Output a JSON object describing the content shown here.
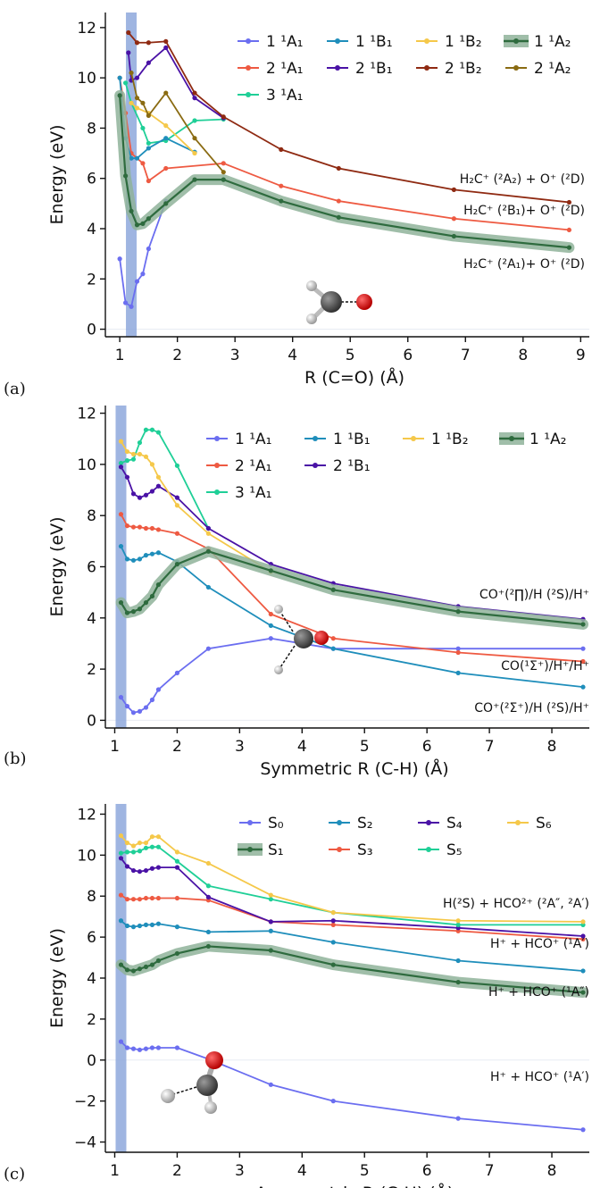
{
  "chart_data": [
    {
      "type": "line",
      "panel_label": "(a)",
      "xlabel": "R (C=O) (Å)",
      "ylabel": "Energy (eV)",
      "xlim": [
        0.75,
        9.15
      ],
      "ylim": [
        -0.3,
        12.6
      ],
      "xticks": [
        1,
        2,
        3,
        4,
        5,
        6,
        7,
        8,
        9
      ],
      "yticks": [
        0,
        2,
        4,
        6,
        8,
        10,
        12
      ],
      "highlight_band_x": 1.2,
      "legend_columns": 4,
      "series": [
        {
          "name": "1 ¹A₁",
          "color": "#6b6ef0",
          "x": [
            1.0,
            1.1,
            1.2,
            1.3,
            1.4,
            1.5,
            1.8
          ],
          "y": [
            2.8,
            1.05,
            0.9,
            1.9,
            2.2,
            3.2,
            5.1
          ]
        },
        {
          "name": "2 ¹A₁",
          "color": "#ee5a42",
          "x": [
            1.0,
            1.1,
            1.2,
            1.4,
            1.5,
            1.8,
            2.8,
            3.8,
            4.8,
            6.8,
            8.8
          ],
          "y": [
            10.0,
            8.6,
            7.0,
            6.6,
            5.9,
            6.4,
            6.6,
            5.7,
            5.1,
            4.4,
            3.95
          ]
        },
        {
          "name": "3 ¹A₁",
          "color": "#1fcf97",
          "x": [
            1.1,
            1.2,
            1.4,
            1.5,
            1.8,
            2.3,
            2.8
          ],
          "y": [
            9.8,
            9.0,
            8.0,
            7.4,
            7.5,
            8.3,
            8.35
          ]
        },
        {
          "name": "1 ¹B₁",
          "color": "#1f8ebb",
          "x": [
            1.0,
            1.1,
            1.2,
            1.3,
            1.5,
            1.8,
            2.3
          ],
          "y": [
            10.0,
            7.6,
            6.8,
            6.8,
            7.2,
            7.6,
            7.05
          ]
        },
        {
          "name": "2 ¹B₁",
          "color": "#4a12a6",
          "x": [
            1.15,
            1.2,
            1.3,
            1.5,
            1.8,
            2.3,
            2.8
          ],
          "y": [
            11.0,
            9.9,
            10.0,
            10.6,
            11.2,
            9.2,
            8.4
          ]
        },
        {
          "name": "1 ¹B₂",
          "color": "#f5c84a",
          "x": [
            1.2,
            1.3,
            1.5,
            1.8,
            2.3
          ],
          "y": [
            9.0,
            8.8,
            8.6,
            8.1,
            7.0
          ]
        },
        {
          "name": "2 ¹B₂",
          "color": "#8f2a12",
          "x": [
            1.15,
            1.3,
            1.5,
            1.8,
            2.3,
            2.8,
            3.8,
            4.8,
            6.8,
            8.8
          ],
          "y": [
            11.8,
            11.4,
            11.4,
            11.45,
            9.4,
            8.45,
            7.15,
            6.4,
            5.55,
            5.05
          ]
        },
        {
          "name": "1 ¹A₂",
          "color": "#2e6b3e",
          "highlight": true,
          "x": [
            1.0,
            1.1,
            1.2,
            1.3,
            1.4,
            1.5,
            1.8,
            2.3,
            2.8,
            3.8,
            4.8,
            6.8,
            8.8
          ],
          "y": [
            9.3,
            6.1,
            4.7,
            4.15,
            4.2,
            4.4,
            5.0,
            5.95,
            5.95,
            5.1,
            4.45,
            3.7,
            3.25
          ]
        },
        {
          "name": "2 ¹A₂",
          "color": "#8a6b12",
          "x": [
            1.2,
            1.3,
            1.4,
            1.5,
            1.8,
            2.3,
            2.8
          ],
          "y": [
            10.2,
            9.2,
            9.0,
            8.5,
            9.4,
            7.6,
            6.25
          ]
        }
      ],
      "annotations": [
        "H₂C⁺ (²A₂) + O⁺ (²D)",
        "H₂C⁺ (²B₁)+ O⁺ (²D)",
        "H₂C⁺ (²A₁)+ O⁺ (²D)"
      ]
    },
    {
      "type": "line",
      "panel_label": "(b)",
      "xlabel": "Symmetric R (C-H) (Å)",
      "ylabel": "Energy (eV)",
      "xlim": [
        0.85,
        8.6
      ],
      "ylim": [
        -0.3,
        12.3
      ],
      "xticks": [
        1,
        2,
        3,
        4,
        5,
        6,
        7,
        8
      ],
      "yticks": [
        0,
        2,
        4,
        6,
        8,
        10,
        12
      ],
      "highlight_band_x": 1.1,
      "legend_columns": 4,
      "series": [
        {
          "name": "1 ¹A₁",
          "color": "#6b6ef0",
          "x": [
            1.1,
            1.2,
            1.3,
            1.4,
            1.5,
            1.6,
            1.7,
            2.0,
            2.5,
            3.5,
            4.5,
            6.5,
            8.5
          ],
          "y": [
            0.9,
            0.55,
            0.3,
            0.35,
            0.5,
            0.8,
            1.2,
            1.85,
            2.8,
            3.2,
            2.8,
            2.8,
            2.8
          ]
        },
        {
          "name": "2 ¹A₁",
          "color": "#ee5a42",
          "x": [
            1.1,
            1.2,
            1.3,
            1.4,
            1.5,
            1.6,
            1.7,
            2.0,
            2.5,
            3.5,
            4.5,
            6.5,
            8.5
          ],
          "y": [
            8.05,
            7.6,
            7.55,
            7.55,
            7.5,
            7.5,
            7.45,
            7.3,
            6.7,
            4.15,
            3.2,
            2.65,
            2.3
          ]
        },
        {
          "name": "3 ¹A₁",
          "color": "#1fcf97",
          "x": [
            1.1,
            1.2,
            1.3,
            1.4,
            1.5,
            1.6,
            1.7,
            2.0,
            2.5
          ],
          "y": [
            10.05,
            10.15,
            10.2,
            10.85,
            11.35,
            11.35,
            11.25,
            9.95,
            7.5
          ]
        },
        {
          "name": "1 ¹B₁",
          "color": "#1f8ebb",
          "x": [
            1.1,
            1.2,
            1.3,
            1.4,
            1.5,
            1.6,
            1.7,
            2.0,
            2.5,
            3.5,
            4.5,
            6.5,
            8.5
          ],
          "y": [
            6.8,
            6.3,
            6.25,
            6.3,
            6.45,
            6.5,
            6.55,
            6.2,
            5.2,
            3.7,
            2.8,
            1.85,
            1.3
          ]
        },
        {
          "name": "2 ¹B₁",
          "color": "#4a12a6",
          "x": [
            1.1,
            1.2,
            1.3,
            1.4,
            1.5,
            1.6,
            1.7,
            2.0,
            2.5,
            3.5,
            4.5,
            6.5,
            8.5
          ],
          "y": [
            9.9,
            9.5,
            8.85,
            8.7,
            8.8,
            8.95,
            9.15,
            8.7,
            7.5,
            6.1,
            5.35,
            4.45,
            3.95
          ]
        },
        {
          "name": "1 ¹B₂",
          "color": "#f5c84a",
          "x": [
            1.1,
            1.2,
            1.3,
            1.4,
            1.5,
            1.6,
            1.7,
            2.0,
            2.5,
            3.5
          ],
          "y": [
            10.9,
            10.5,
            10.4,
            10.4,
            10.3,
            10.0,
            9.5,
            8.4,
            7.3,
            5.8
          ]
        },
        {
          "name": "1 ¹A₂",
          "color": "#2e6b3e",
          "highlight": true,
          "x": [
            1.1,
            1.2,
            1.3,
            1.4,
            1.5,
            1.6,
            1.7,
            2.0,
            2.5,
            3.5,
            4.5,
            6.5,
            8.5
          ],
          "y": [
            4.6,
            4.2,
            4.25,
            4.35,
            4.6,
            4.85,
            5.3,
            6.1,
            6.6,
            5.85,
            5.1,
            4.25,
            3.75
          ]
        }
      ],
      "annotations": [
        "CO⁺(²∏)/H (²S)/H⁺",
        "CO(¹Σ⁺)/H⁺/H⁺",
        "CO⁺(²Σ⁺)/H (²S)/H⁺"
      ]
    },
    {
      "type": "line",
      "panel_label": "(c)",
      "xlabel": "Asymmetric R (C-H) (Å)",
      "ylabel": "Energy (eV)",
      "xlim": [
        0.85,
        8.6
      ],
      "ylim": [
        -4.5,
        12.5
      ],
      "xticks": [
        1,
        2,
        3,
        4,
        5,
        6,
        7,
        8
      ],
      "yticks": [
        -4,
        -2,
        0,
        2,
        4,
        6,
        8,
        10,
        12
      ],
      "highlight_band_x": 1.1,
      "legend_columns": 4,
      "series": [
        {
          "name": "S₀",
          "color": "#6b6ef0",
          "x": [
            1.1,
            1.2,
            1.3,
            1.4,
            1.5,
            1.6,
            1.7,
            2.0,
            2.5,
            3.5,
            4.5,
            6.5,
            8.5
          ],
          "y": [
            0.9,
            0.6,
            0.55,
            0.5,
            0.55,
            0.6,
            0.6,
            0.6,
            0.05,
            -1.2,
            -2.0,
            -2.85,
            -3.4
          ]
        },
        {
          "name": "S₁",
          "color": "#2e6b3e",
          "highlight": true,
          "x": [
            1.1,
            1.2,
            1.3,
            1.4,
            1.5,
            1.6,
            1.7,
            2.0,
            2.5,
            3.5,
            4.5,
            6.5,
            8.5
          ],
          "y": [
            4.65,
            4.4,
            4.35,
            4.45,
            4.55,
            4.65,
            4.85,
            5.2,
            5.55,
            5.35,
            4.65,
            3.8,
            3.3
          ]
        },
        {
          "name": "S₂",
          "color": "#1f8ebb",
          "x": [
            1.1,
            1.2,
            1.3,
            1.4,
            1.5,
            1.6,
            1.7,
            2.0,
            2.5,
            3.5,
            4.5,
            6.5,
            8.5
          ],
          "y": [
            6.8,
            6.55,
            6.5,
            6.55,
            6.6,
            6.6,
            6.65,
            6.5,
            6.25,
            6.3,
            5.75,
            4.85,
            4.35
          ]
        },
        {
          "name": "S₃",
          "color": "#ee5a42",
          "x": [
            1.1,
            1.2,
            1.3,
            1.4,
            1.5,
            1.6,
            1.7,
            2.0,
            2.5,
            3.5,
            4.5,
            6.5,
            8.5
          ],
          "y": [
            8.05,
            7.85,
            7.85,
            7.85,
            7.9,
            7.9,
            7.9,
            7.9,
            7.8,
            6.75,
            6.6,
            6.3,
            5.9
          ]
        },
        {
          "name": "S₄",
          "color": "#4a12a6",
          "x": [
            1.1,
            1.2,
            1.3,
            1.4,
            1.5,
            1.6,
            1.7,
            2.0,
            2.5,
            3.5,
            4.5,
            6.5,
            8.5
          ],
          "y": [
            9.85,
            9.45,
            9.25,
            9.2,
            9.25,
            9.35,
            9.4,
            9.4,
            7.95,
            6.75,
            6.8,
            6.45,
            6.05
          ]
        },
        {
          "name": "S₅",
          "color": "#1fcf97",
          "x": [
            1.1,
            1.2,
            1.3,
            1.4,
            1.5,
            1.6,
            1.7,
            2.0,
            2.5,
            3.5,
            4.5,
            6.5,
            8.5
          ],
          "y": [
            10.1,
            10.15,
            10.15,
            10.2,
            10.35,
            10.4,
            10.4,
            9.7,
            8.5,
            7.85,
            7.2,
            6.6,
            6.6
          ]
        },
        {
          "name": "S₆",
          "color": "#f5c84a",
          "x": [
            1.1,
            1.2,
            1.3,
            1.4,
            1.5,
            1.6,
            1.7,
            2.0,
            2.5,
            3.5,
            4.5,
            6.5,
            8.5
          ],
          "y": [
            10.95,
            10.6,
            10.45,
            10.6,
            10.6,
            10.9,
            10.9,
            10.15,
            9.6,
            8.05,
            7.2,
            6.8,
            6.75
          ]
        }
      ],
      "annotations": [
        "H(²S) + HCO²⁺ (²A″, ²A′)",
        "H⁺ + HCO⁺ (¹A′)",
        "H⁺ + HCO⁺ (¹A″)",
        "H⁺ + HCO⁺ (¹A′)"
      ]
    }
  ]
}
